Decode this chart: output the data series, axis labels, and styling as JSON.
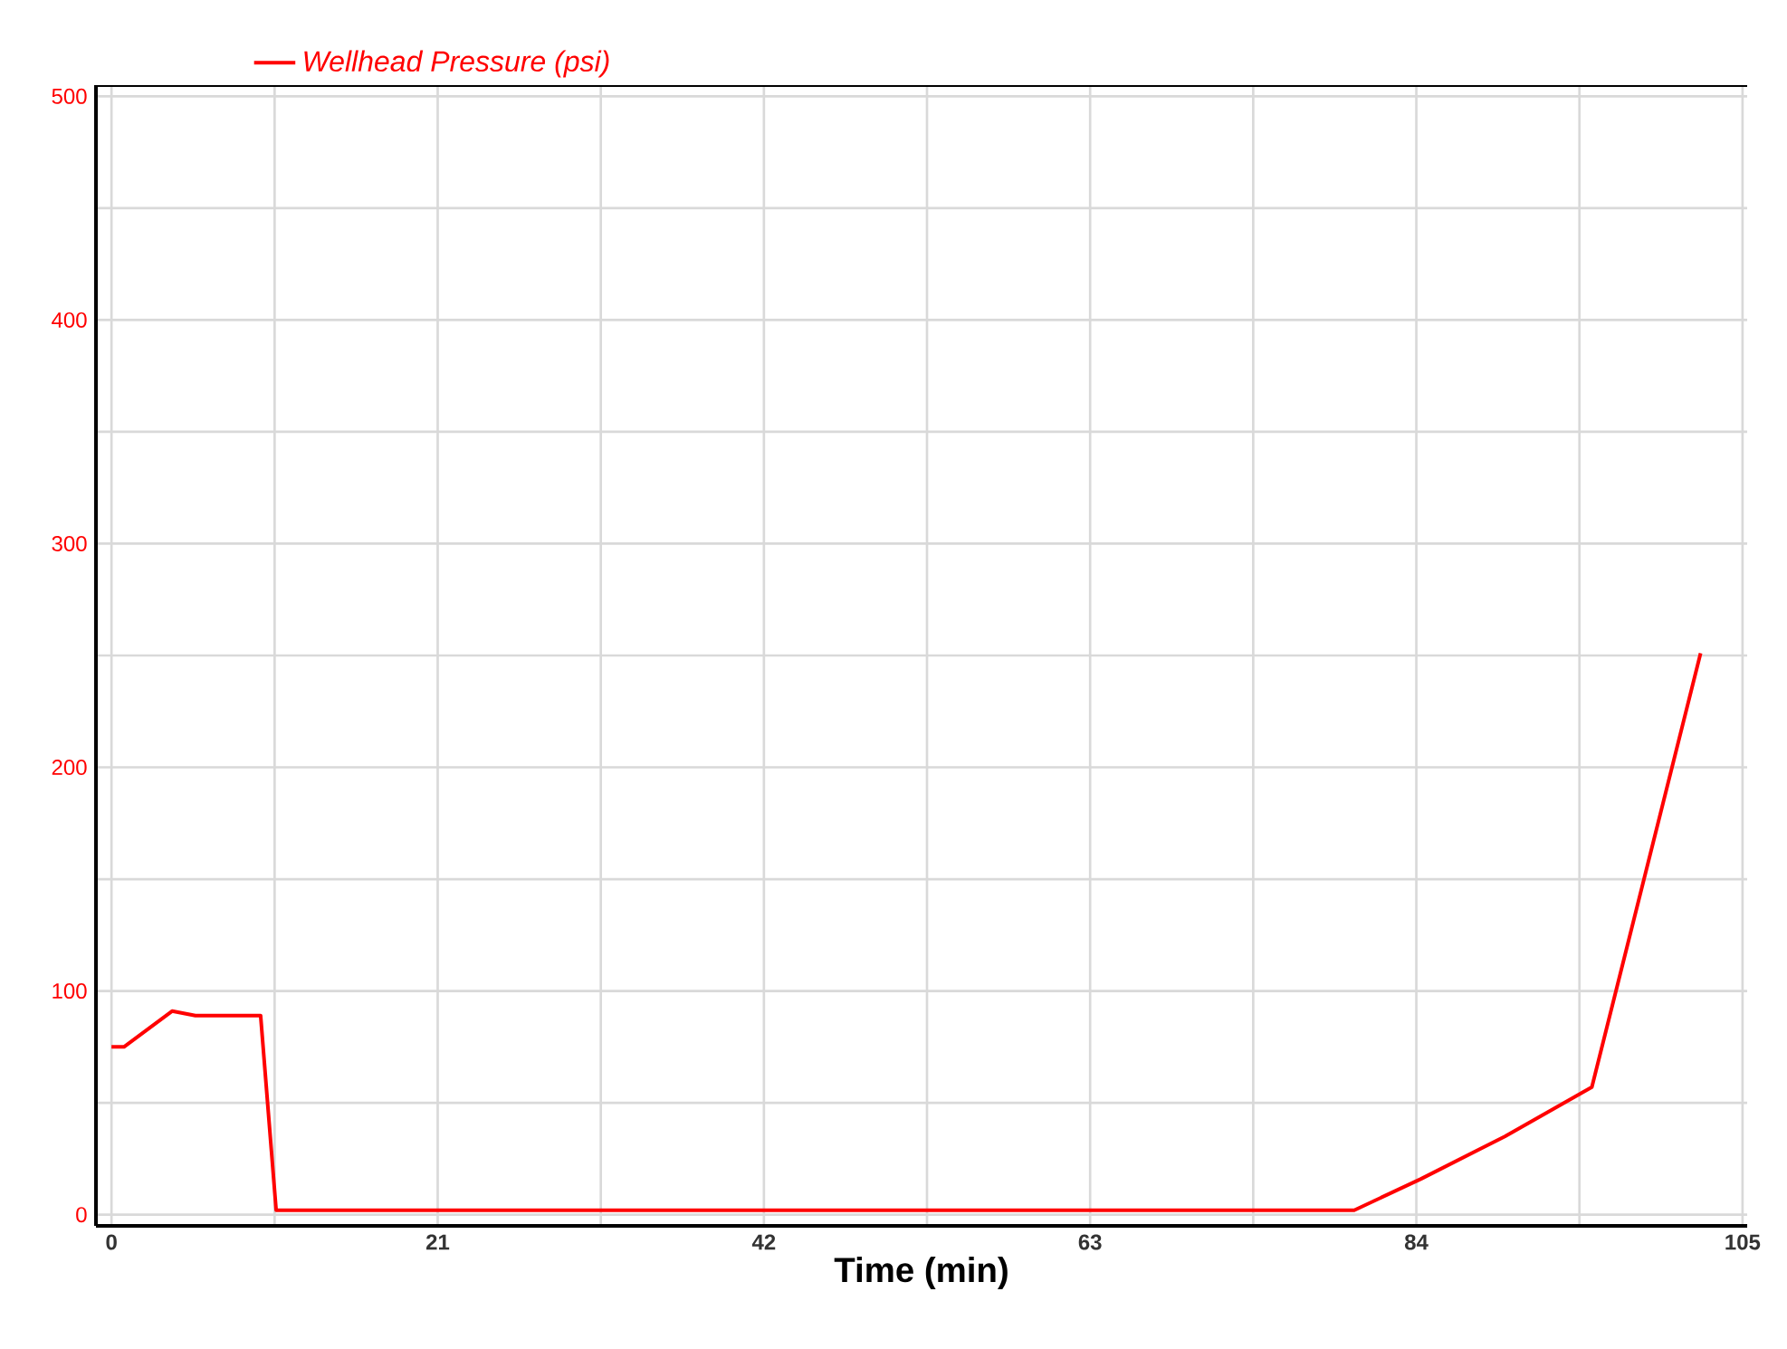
{
  "chart_data": {
    "type": "line",
    "xlabel": "Time (min)",
    "x": [
      0,
      0.8,
      3.9,
      5.4,
      9.6,
      10.6,
      80,
      84.3,
      89.7,
      95.3,
      102.3
    ],
    "series": [
      {
        "name": "Wellhead Pressure  (psi)",
        "color": "#ff0000",
        "values": [
          75,
          75,
          91,
          89,
          89,
          2,
          2,
          16,
          35,
          57,
          251
        ]
      }
    ],
    "xlim": [
      -1,
      105.3
    ],
    "ylim": [
      -5,
      505
    ],
    "xticks": [
      0,
      {
        "value": 10.5,
        "label": null
      },
      21,
      {
        "value": 31.5,
        "label": null
      },
      42,
      {
        "value": 52.5,
        "label": null
      },
      63,
      {
        "value": 73.5,
        "label": null
      },
      84,
      {
        "value": 94.5,
        "label": null
      },
      105
    ],
    "yticks": [
      0,
      {
        "value": 50,
        "label": null
      },
      100,
      {
        "value": 150,
        "label": null
      },
      200,
      {
        "value": 250,
        "label": null
      },
      300,
      {
        "value": 350,
        "label": null
      },
      400,
      {
        "value": 450,
        "label": null
      },
      500
    ],
    "grid": true,
    "legend": "top left"
  }
}
